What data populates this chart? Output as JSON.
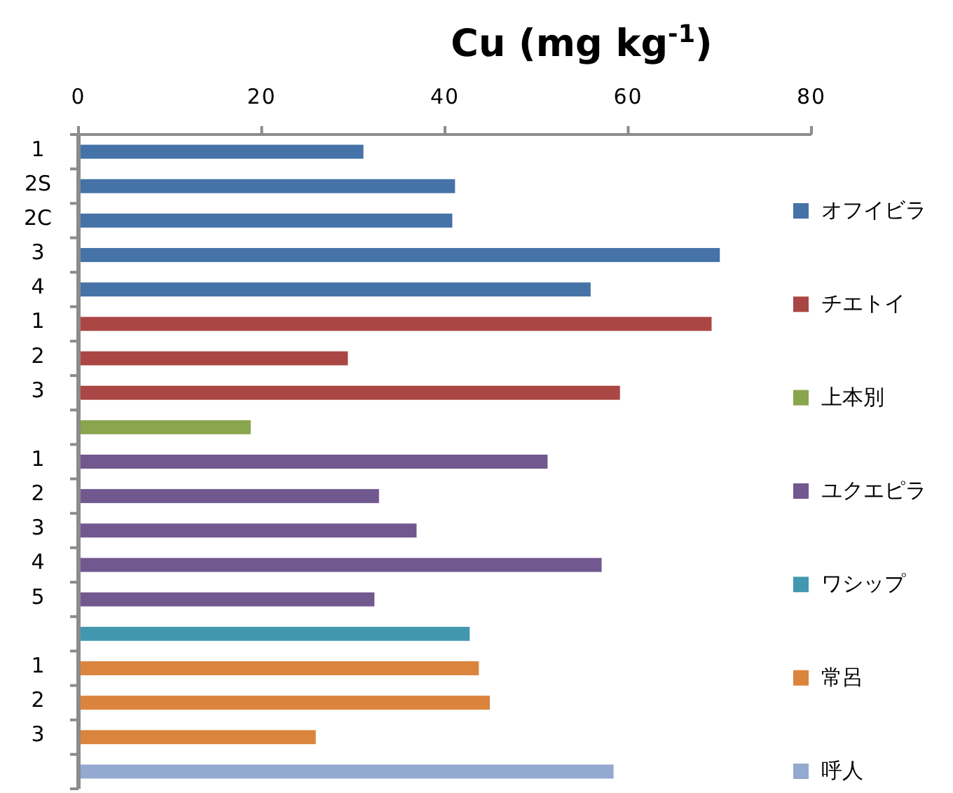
{
  "chart_data": {
    "type": "bar",
    "orientation": "horizontal",
    "title": "Cu (mg kg$^{-1}$)",
    "categories": [
      "1",
      "2S",
      "2C",
      "3",
      "4",
      "1",
      "2",
      "3",
      null,
      "1",
      "2",
      "3",
      "4",
      "5",
      null,
      "1",
      "2",
      "3",
      null
    ],
    "xlim": [
      0,
      80
    ],
    "xticks": [
      0,
      20,
      40,
      60,
      80
    ],
    "grid": false,
    "legend": "right",
    "series": [
      {
        "name": "オフイビラ",
        "color": "#4572a7",
        "values": [
          31.1,
          41.1,
          40.8,
          70.0,
          55.9,
          null,
          null,
          null,
          null,
          null,
          null,
          null,
          null,
          null,
          null,
          null,
          null,
          null,
          null
        ]
      },
      {
        "name": "チエトイ",
        "color": "#aa4643",
        "values": [
          null,
          null,
          null,
          null,
          null,
          69.1,
          29.4,
          59.1,
          null,
          null,
          null,
          null,
          null,
          null,
          null,
          null,
          null,
          null,
          null
        ]
      },
      {
        "name": "上本別",
        "color": "#89a54e",
        "values": [
          null,
          null,
          null,
          null,
          null,
          null,
          null,
          null,
          18.8,
          null,
          null,
          null,
          null,
          null,
          null,
          null,
          null,
          null,
          null
        ]
      },
      {
        "name": "ユクエピラ",
        "color": "#71588f",
        "values": [
          null,
          null,
          null,
          null,
          null,
          null,
          null,
          null,
          null,
          51.2,
          32.8,
          36.9,
          57.1,
          32.3,
          null,
          null,
          null,
          null,
          null
        ]
      },
      {
        "name": "ワシップ",
        "color": "#4198af",
        "values": [
          null,
          null,
          null,
          null,
          null,
          null,
          null,
          null,
          null,
          null,
          null,
          null,
          null,
          null,
          42.7,
          null,
          null,
          null,
          null
        ]
      },
      {
        "name": "常呂",
        "color": "#db843d",
        "values": [
          null,
          null,
          null,
          null,
          null,
          null,
          null,
          null,
          null,
          null,
          null,
          null,
          null,
          null,
          null,
          43.7,
          44.9,
          25.9,
          null
        ]
      },
      {
        "name": "呼人",
        "color": "#93a9cf",
        "values": [
          null,
          null,
          null,
          null,
          null,
          null,
          null,
          null,
          null,
          null,
          null,
          null,
          null,
          null,
          null,
          null,
          null,
          null,
          58.4
        ]
      }
    ]
  }
}
